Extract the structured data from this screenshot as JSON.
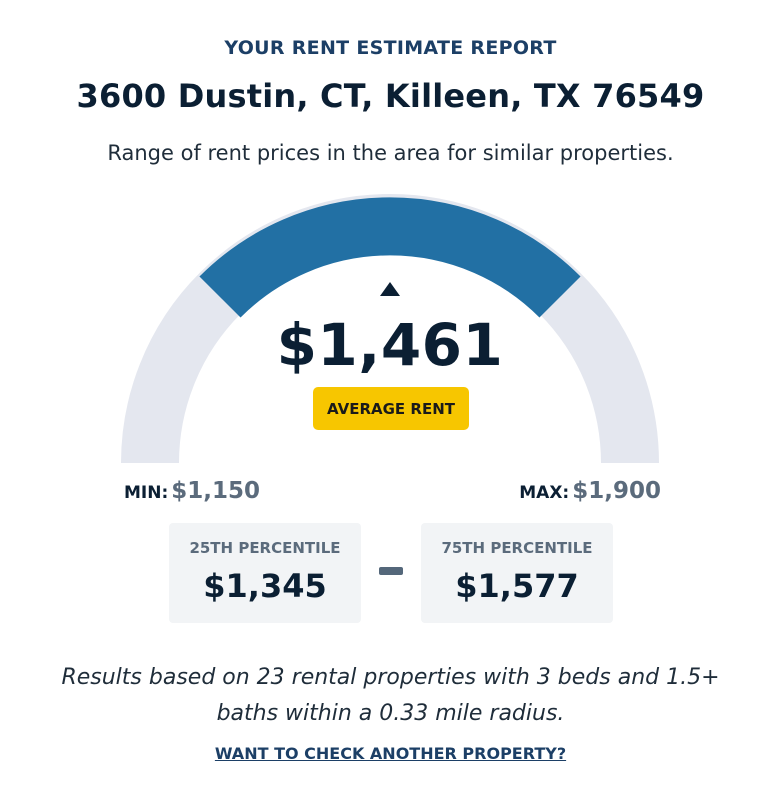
{
  "header": {
    "report_label": "YOUR RENT ESTIMATE REPORT",
    "address": "3600 Dustin, CT, Killeen, TX 76549",
    "subtitle": "Range of rent prices in the area for similar properties."
  },
  "gauge": {
    "average_value": "$1,461",
    "average_badge": "AVERAGE RENT",
    "min_label": "MIN:",
    "min_value": "$1,150",
    "max_label": "MAX:",
    "max_value": "$1,900",
    "colors": {
      "track": "#e4e7ef",
      "highlight": "#2270a4",
      "badge": "#f7c600"
    }
  },
  "percentiles": {
    "p25_label": "25TH PERCENTILE",
    "p25_value": "$1,345",
    "p75_label": "75TH PERCENTILE",
    "p75_value": "$1,577"
  },
  "footer": {
    "results_line1": "Results based on 23 rental properties with 3 beds and 1.5+",
    "results_line2": "baths within a 0.33 mile radius.",
    "check_link": "WANT TO CHECK ANOTHER PROPERTY?"
  }
}
